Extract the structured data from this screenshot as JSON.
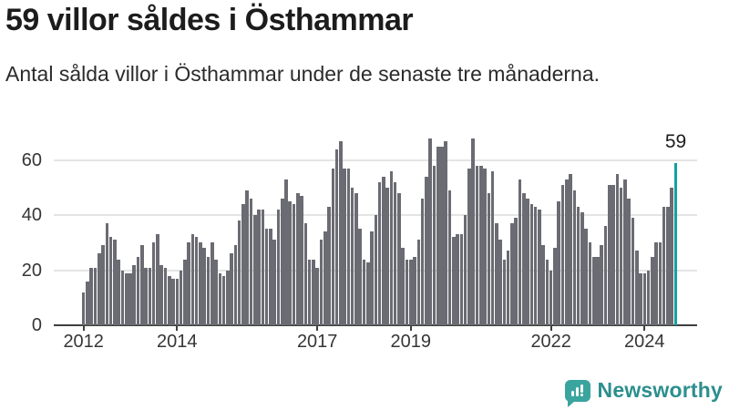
{
  "header": {
    "title": "59 villor såldes i Östhammar",
    "subtitle": "Antal sålda villor i Östhammar under de senaste tre månaderna."
  },
  "chart_data": {
    "type": "bar",
    "title": "59 villor såldes i Östhammar",
    "subtitle": "Antal sålda villor i Östhammar under de senaste tre månaderna.",
    "x_start": "2012-01",
    "x_end": "2024-09",
    "x_interval": "month",
    "values": [
      12,
      16,
      21,
      21,
      26,
      29,
      37,
      32,
      31,
      24,
      20,
      19,
      19,
      22,
      25,
      29,
      21,
      21,
      30,
      33,
      22,
      21,
      18,
      17,
      17,
      20,
      24,
      30,
      33,
      32,
      30,
      28,
      25,
      30,
      24,
      19,
      18,
      20,
      26,
      29,
      38,
      44,
      49,
      46,
      40,
      42,
      42,
      35,
      35,
      31,
      42,
      46,
      53,
      45,
      44,
      48,
      47,
      37,
      24,
      24,
      21,
      31,
      34,
      43,
      57,
      64,
      67,
      57,
      57,
      50,
      48,
      35,
      24,
      23,
      34,
      40,
      52,
      54,
      50,
      56,
      52,
      48,
      28,
      24,
      24,
      25,
      31,
      46,
      54,
      68,
      58,
      65,
      65,
      67,
      49,
      32,
      33,
      33,
      40,
      57,
      68,
      58,
      58,
      57,
      48,
      56,
      37,
      31,
      24,
      27,
      37,
      39,
      53,
      48,
      46,
      44,
      43,
      42,
      29,
      24,
      20,
      28,
      45,
      51,
      53,
      55,
      49,
      43,
      41,
      35,
      30,
      25,
      25,
      29,
      36,
      51,
      51,
      55,
      50,
      53,
      46,
      39,
      27,
      19,
      19,
      20,
      25,
      30,
      30,
      43,
      43,
      50,
      59
    ],
    "y_ticks": [
      0,
      20,
      40,
      60
    ],
    "ylim": [
      0,
      72
    ],
    "x_ticks": [
      {
        "label": "2012",
        "month_index": 0
      },
      {
        "label": "2014",
        "month_index": 24
      },
      {
        "label": "2017",
        "month_index": 60
      },
      {
        "label": "2019",
        "month_index": 84
      },
      {
        "label": "2022",
        "month_index": 120
      },
      {
        "label": "2024",
        "month_index": 144
      }
    ],
    "grid": "horizontal",
    "legend": "none",
    "bar_color": "#6b6b73",
    "highlight_last": true,
    "highlight_color": "#14a0a0",
    "annotation": {
      "text": "59",
      "value": 59
    }
  },
  "footer": {
    "brand": "Newsworthy",
    "logo_icon": "bar-chart-speech-bubble-icon",
    "brand_text_color": "#2c8f8e",
    "icon_color": "#3aa49f"
  }
}
